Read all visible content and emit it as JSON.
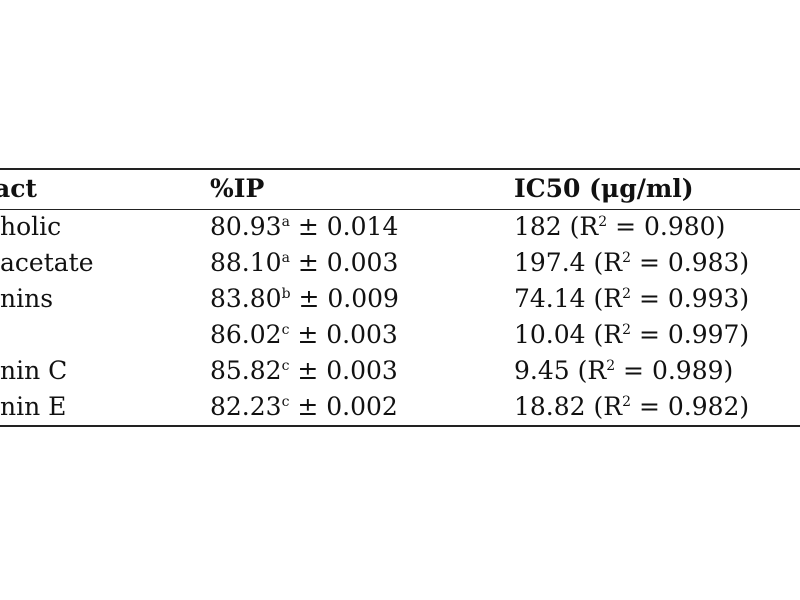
{
  "table": {
    "headers": [
      "act",
      "%IP",
      "IC50 (μg/ml)"
    ],
    "rows": [
      {
        "extract": "holic",
        "ip_value": "80.93",
        "ip_sup": "a",
        "ip_error": " ± 0.014",
        "ic50_value": "182 (R",
        "ic50_sup": "2",
        "ic50_tail": " = 0.980)"
      },
      {
        "extract": " acetate",
        "ip_value": "88.10",
        "ip_sup": "a",
        "ip_error": " ± 0.003",
        "ic50_value": "197.4 (R",
        "ic50_sup": "2",
        "ic50_tail": " = 0.983)"
      },
      {
        "extract": "nins",
        "ip_value": "83.80",
        "ip_sup": "b",
        "ip_error": " ± 0.009",
        "ic50_value": "74.14 (R",
        "ic50_sup": "2",
        "ic50_tail": " = 0.993)"
      },
      {
        "extract": "",
        "ip_value": "86.02",
        "ip_sup": "c",
        "ip_error": " ± 0.003",
        "ic50_value": "10.04 (R",
        "ic50_sup": "2",
        "ic50_tail": " = 0.997)"
      },
      {
        "extract": "nin C",
        "ip_value": "85.82",
        "ip_sup": "c",
        "ip_error": " ± 0.003",
        "ic50_value": "9.45 (R",
        "ic50_sup": "2",
        "ic50_tail": " = 0.989)"
      },
      {
        "extract": "nin E",
        "ip_value": "82.23",
        "ip_sup": "c",
        "ip_error": " ± 0.002",
        "ic50_value": "18.82 (R",
        "ic50_sup": "2",
        "ic50_tail": " = 0.982)"
      }
    ]
  }
}
